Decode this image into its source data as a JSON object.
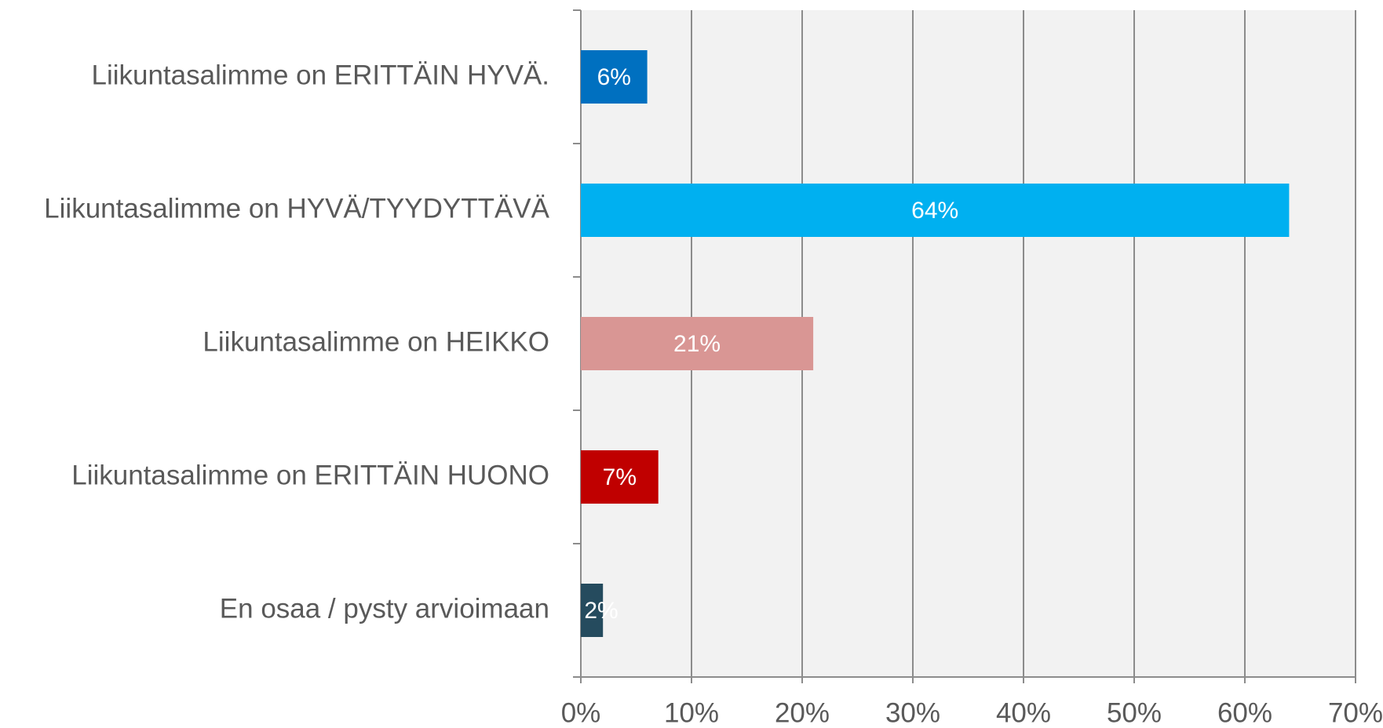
{
  "chart_data": {
    "type": "bar",
    "orientation": "horizontal",
    "categories": [
      "Liikuntasalimme on ERITTÄIN HYVÄ.",
      "Liikuntasalimme on HYVÄ/TYYDYTTÄVÄ",
      "Liikuntasalimme on HEIKKO",
      "Liikuntasalimme on ERITTÄIN HUONO",
      "En osaa / pysty arvioimaan"
    ],
    "values": [
      6,
      64,
      21,
      7,
      2
    ],
    "value_labels": [
      "6%",
      "64%",
      "21%",
      "7%",
      "2%"
    ],
    "colors": [
      "#0070c0",
      "#00b0f0",
      "#d99694",
      "#c00000",
      "#254b5e"
    ],
    "xlim": [
      0,
      70
    ],
    "xticks": [
      {
        "value": 0,
        "label": "0%"
      },
      {
        "value": 10,
        "label": "10%"
      },
      {
        "value": 20,
        "label": "20%"
      },
      {
        "value": 30,
        "label": "30%"
      },
      {
        "value": 40,
        "label": "40%"
      },
      {
        "value": 50,
        "label": "50%"
      },
      {
        "value": 60,
        "label": "60%"
      },
      {
        "value": 70,
        "label": "70%"
      }
    ],
    "grid": true
  }
}
